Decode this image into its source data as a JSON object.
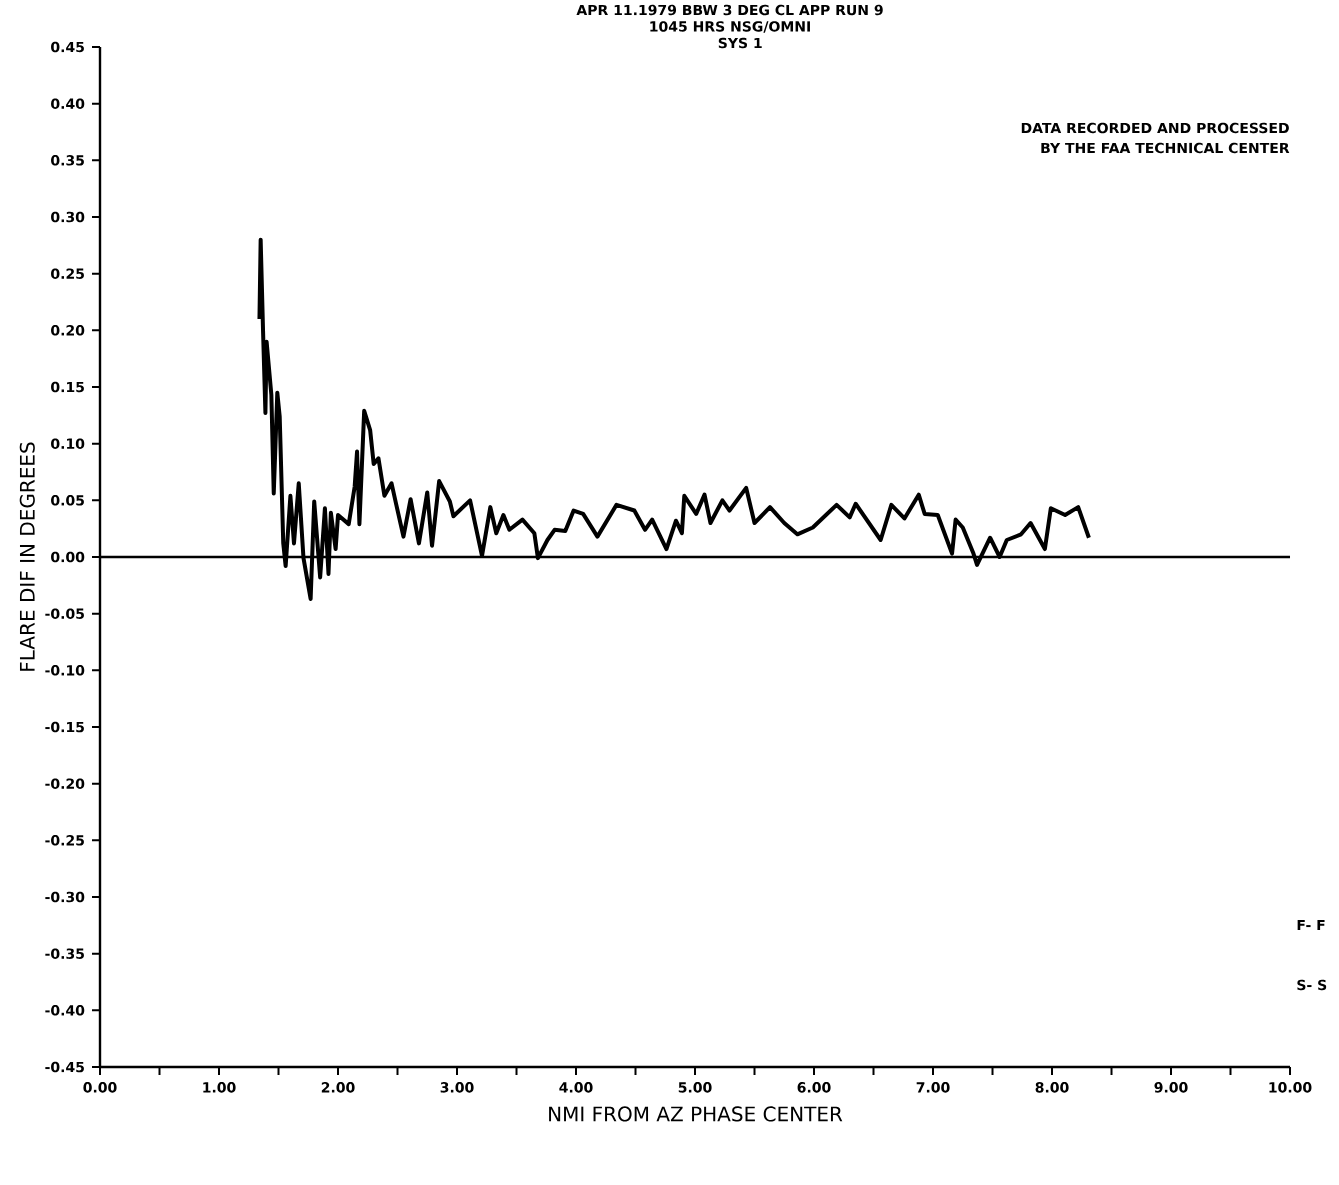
{
  "chart_data": {
    "type": "line",
    "title": "APR 11.1979 BBW 3 DEG CL APP          RUN 9",
    "subtitle": "1045 HRS      NSG/OMNI",
    "xlabel": "NMI FROM AZ PHASE CENTER",
    "ylabel": "FLARE DIF IN DEGREES",
    "annotations": [
      "SYS 1",
      "DATA RECORDED AND PROCESSED",
      "BY THE FAA TECHNICAL CENTER",
      "F- F",
      "S- S"
    ],
    "xlim": [
      0,
      10
    ],
    "ylim": [
      -0.45,
      0.45
    ],
    "xticks": [
      {
        "value": 0,
        "label": "0.00"
      },
      {
        "value": 0.5,
        "label": null
      },
      {
        "value": 1,
        "label": "1.00"
      },
      {
        "value": 1.5,
        "label": null
      },
      {
        "value": 2,
        "label": "2.00"
      },
      {
        "value": 2.5,
        "label": null
      },
      {
        "value": 3,
        "label": "3.00"
      },
      {
        "value": 3.5,
        "label": null
      },
      {
        "value": 4,
        "label": "4.00"
      },
      {
        "value": 4.5,
        "label": null
      },
      {
        "value": 5,
        "label": "5.00"
      },
      {
        "value": 5.5,
        "label": null
      },
      {
        "value": 6,
        "label": "6.00"
      },
      {
        "value": 6.5,
        "label": null
      },
      {
        "value": 7,
        "label": "7.00"
      },
      {
        "value": 7.5,
        "label": null
      },
      {
        "value": 8,
        "label": "8.00"
      },
      {
        "value": 8.5,
        "label": null
      },
      {
        "value": 9,
        "label": "9.00"
      },
      {
        "value": 9.5,
        "label": null
      },
      {
        "value": 10,
        "label": "10.00"
      }
    ],
    "yticks": [
      {
        "value": -0.45,
        "label": "-0.45"
      },
      {
        "value": -0.4,
        "label": "-0.40"
      },
      {
        "value": -0.35,
        "label": "-0.35"
      },
      {
        "value": -0.3,
        "label": "-0.30"
      },
      {
        "value": -0.25,
        "label": "-0.25"
      },
      {
        "value": -0.2,
        "label": "-0.20"
      },
      {
        "value": -0.15,
        "label": "-0.15"
      },
      {
        "value": -0.1,
        "label": "-0.10"
      },
      {
        "value": -0.05,
        "label": "-0.05"
      },
      {
        "value": 0,
        "label": "0.00"
      },
      {
        "value": 0.05,
        "label": "0.05"
      },
      {
        "value": 0.1,
        "label": "0.10"
      },
      {
        "value": 0.15,
        "label": "0.15"
      },
      {
        "value": 0.2,
        "label": "0.20"
      },
      {
        "value": 0.25,
        "label": "0.25"
      },
      {
        "value": 0.3,
        "label": "0.30"
      },
      {
        "value": 0.35,
        "label": "0.35"
      },
      {
        "value": 0.4,
        "label": "0.40"
      },
      {
        "value": 0.45,
        "label": "0.45"
      }
    ],
    "ref_lines": [
      {
        "axis": "y",
        "value": 0,
        "color": "#000000"
      }
    ],
    "marker": "none",
    "line_style": "solid",
    "series": [
      {
        "color": "#000000",
        "x": [
          1.34,
          1.35,
          1.37,
          1.39,
          1.4,
          1.44,
          1.46,
          1.49,
          1.51,
          1.54,
          1.56,
          1.6,
          1.63,
          1.67,
          1.71,
          1.77,
          1.8,
          1.85,
          1.89,
          1.92,
          1.94,
          1.98,
          2.0,
          2.09,
          2.14,
          2.16,
          2.18,
          2.22,
          2.27,
          2.3,
          2.34,
          2.39,
          2.45,
          2.49,
          2.55,
          2.61,
          2.68,
          2.75,
          2.79,
          2.85,
          2.94,
          2.97,
          3.11,
          3.21,
          3.28,
          3.33,
          3.39,
          3.44,
          3.55,
          3.65,
          3.68,
          3.76,
          3.82,
          3.91,
          3.98,
          4.06,
          4.18,
          4.34,
          4.49,
          4.58,
          4.64,
          4.76,
          4.84,
          4.89,
          4.91,
          5.01,
          5.08,
          5.13,
          5.23,
          5.29,
          5.43,
          5.5,
          5.63,
          5.75,
          5.86,
          5.99,
          6.19,
          6.3,
          6.35,
          6.56,
          6.65,
          6.76,
          6.88,
          6.93,
          7.04,
          7.16,
          7.19,
          7.25,
          7.34,
          7.37,
          7.48,
          7.56,
          7.62,
          7.74,
          7.82,
          7.94,
          7.99,
          8.11,
          8.22,
          8.31
        ],
        "values": [
          0.21,
          0.28,
          0.2,
          0.127,
          0.19,
          0.143,
          0.056,
          0.145,
          0.124,
          0.012,
          -0.008,
          0.054,
          0.012,
          0.065,
          -0.001,
          -0.037,
          0.049,
          -0.018,
          0.043,
          -0.015,
          0.039,
          0.007,
          0.037,
          0.029,
          0.062,
          0.093,
          0.029,
          0.129,
          0.112,
          0.082,
          0.087,
          0.054,
          0.065,
          0.046,
          0.018,
          0.051,
          0.012,
          0.057,
          0.01,
          0.067,
          0.049,
          0.036,
          0.05,
          0.001,
          0.044,
          0.021,
          0.037,
          0.024,
          0.033,
          0.021,
          -0.001,
          0.015,
          0.024,
          0.023,
          0.041,
          0.038,
          0.018,
          0.046,
          0.041,
          0.024,
          0.033,
          0.007,
          0.032,
          0.021,
          0.054,
          0.038,
          0.055,
          0.03,
          0.05,
          0.041,
          0.061,
          0.03,
          0.044,
          0.03,
          0.02,
          0.026,
          0.046,
          0.035,
          0.047,
          0.015,
          0.046,
          0.034,
          0.055,
          0.038,
          0.037,
          0.003,
          0.033,
          0.026,
          0.003,
          -0.007,
          0.017,
          0.0,
          0.015,
          0.02,
          0.03,
          0.007,
          0.043,
          0.037,
          0.044,
          0.017
        ]
      }
    ]
  }
}
